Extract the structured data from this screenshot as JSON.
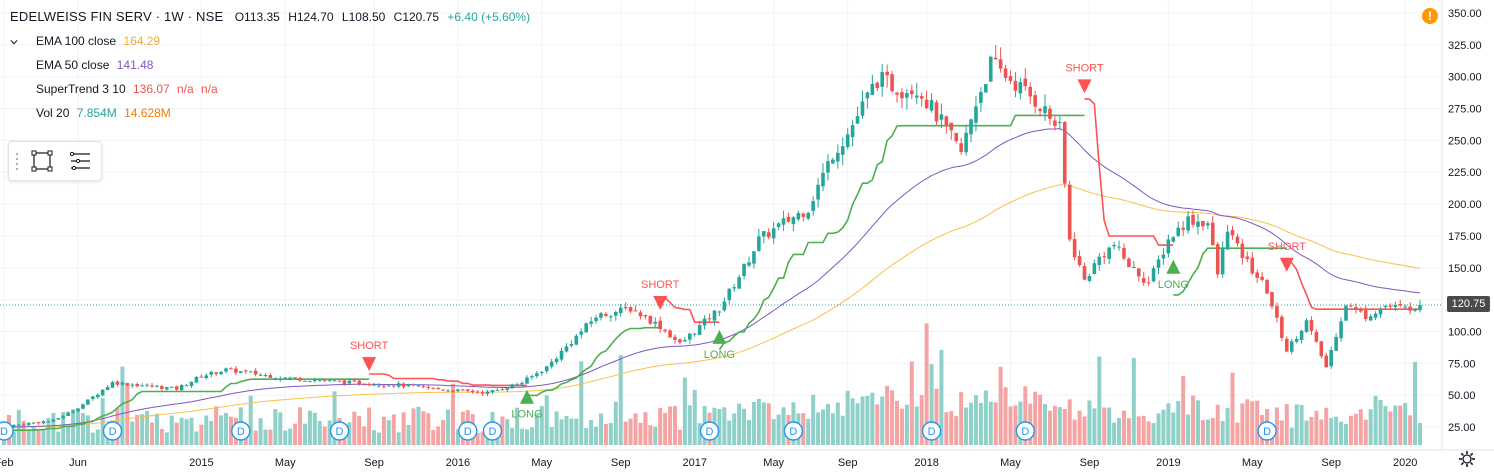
{
  "header": {
    "symbol": "EDELWEISS FIN SERV · 1W · NSE",
    "open": "O113.35",
    "high": "H124.70",
    "low": "L108.50",
    "close": "C120.75",
    "change": "+6.40 (+5.60%)"
  },
  "indicators": {
    "ema100_label": "EMA 100 close",
    "ema100_value": "164.29",
    "ema50_label": "EMA 50 close",
    "ema50_value": "141.48",
    "supertrend_label": "SuperTrend 3 10",
    "supertrend_value": "136.07",
    "supertrend_na1": "n/a",
    "supertrend_na2": "n/a",
    "vol_label": "Vol 20",
    "vol_value1": "7.854M",
    "vol_value2": "14.628M"
  },
  "current_price_label": "120.75",
  "alert_icon_text": "!",
  "colors": {
    "up": "#26a69a",
    "down": "#ef5350",
    "ema100": "#f7c14b",
    "ema50": "#7e57c2",
    "supertrend_up": "#4caf50",
    "supertrend_down": "#ff5252",
    "vol_up": "#8fd0c9",
    "vol_down": "#f4a5a3",
    "ema100_text": "#f2a93b",
    "ema50_text": "#7e57c2",
    "supertrend_text": "#ef5350",
    "vol_text1": "#26a69a",
    "vol_text2": "#f57c00"
  },
  "chart_data": {
    "type": "candlestick",
    "symbol": "EDELWEISS FIN SERV",
    "interval": "1W",
    "exchange": "NSE",
    "ylim": [
      0,
      350
    ],
    "y_ticks": [
      "350.00",
      "325.00",
      "300.00",
      "275.00",
      "250.00",
      "225.00",
      "200.00",
      "175.00",
      "150.00",
      "125.00",
      "100.00",
      "75.00",
      "50.00",
      "25.00"
    ],
    "y_tick_values": [
      350,
      325,
      300,
      275,
      250,
      225,
      200,
      175,
      150,
      125,
      100,
      75,
      50,
      25
    ],
    "x_ticks": [
      "Feb",
      "Jun",
      "2015",
      "May",
      "Sep",
      "2016",
      "May",
      "Sep",
      "2017",
      "May",
      "Sep",
      "2018",
      "May",
      "Sep",
      "2019",
      "May",
      "Sep",
      "2020"
    ],
    "x_tick_weeks": [
      0,
      15,
      40,
      57,
      75,
      92,
      109,
      125,
      140,
      156,
      171,
      187,
      204,
      220,
      236,
      253,
      269,
      284
    ],
    "weeks": 288,
    "close_anchor_weeks": [
      0,
      5,
      10,
      15,
      22,
      35,
      40,
      45,
      56,
      70,
      80,
      90,
      98,
      105,
      110,
      120,
      127,
      133,
      137,
      141,
      145,
      150,
      153,
      158,
      163,
      168,
      171,
      177,
      182,
      185,
      190,
      194,
      197,
      200,
      204,
      210,
      214,
      216,
      219,
      222,
      225,
      228,
      232,
      236,
      240,
      244,
      246,
      248,
      250,
      256,
      260,
      264,
      266,
      268,
      270,
      272,
      276,
      280,
      284,
      287
    ],
    "close_anchor_values": [
      25,
      28,
      30,
      40,
      60,
      55,
      65,
      70,
      64,
      60,
      58,
      54,
      52,
      60,
      72,
      112,
      118,
      104,
      90,
      104,
      118,
      150,
      172,
      185,
      197,
      240,
      255,
      298,
      290,
      292,
      264,
      240,
      280,
      310,
      298,
      278,
      258,
      172,
      140,
      158,
      168,
      152,
      138,
      172,
      188,
      185,
      145,
      182,
      165,
      132,
      85,
      108,
      90,
      72,
      98,
      122,
      112,
      120,
      118,
      121
    ],
    "volume_ylim": [
      0,
      130
    ],
    "supertrend_direction": [
      "up",
      "down",
      "up",
      "down",
      "up",
      "down",
      "up",
      "down"
    ],
    "supertrend_switch_weeks": [
      0,
      74,
      106,
      133,
      145,
      219,
      237,
      260
    ],
    "signals": [
      {
        "label": "SHORT",
        "week": 74,
        "type": "short",
        "price": 72
      },
      {
        "label": "LONG",
        "week": 106,
        "type": "long",
        "price": 48
      },
      {
        "label": "SHORT",
        "week": 133,
        "type": "short",
        "price": 120
      },
      {
        "label": "LONG",
        "week": 145,
        "type": "long",
        "price": 95
      },
      {
        "label": "SHORT",
        "week": 219,
        "type": "short",
        "price": 290
      },
      {
        "label": "LONG",
        "week": 237,
        "type": "long",
        "price": 150
      },
      {
        "label": "SHORT",
        "week": 260,
        "type": "short",
        "price": 150
      }
    ],
    "dividend_marker_label": "D",
    "dividend_weeks": [
      0,
      22,
      48,
      68,
      94,
      99,
      143,
      160,
      188,
      207,
      256
    ],
    "last_price": 120.75,
    "ema100_last": 164.29,
    "ema50_last": 141.48,
    "supertrend_last": 136.07,
    "grid": true,
    "legend": "top-left"
  }
}
